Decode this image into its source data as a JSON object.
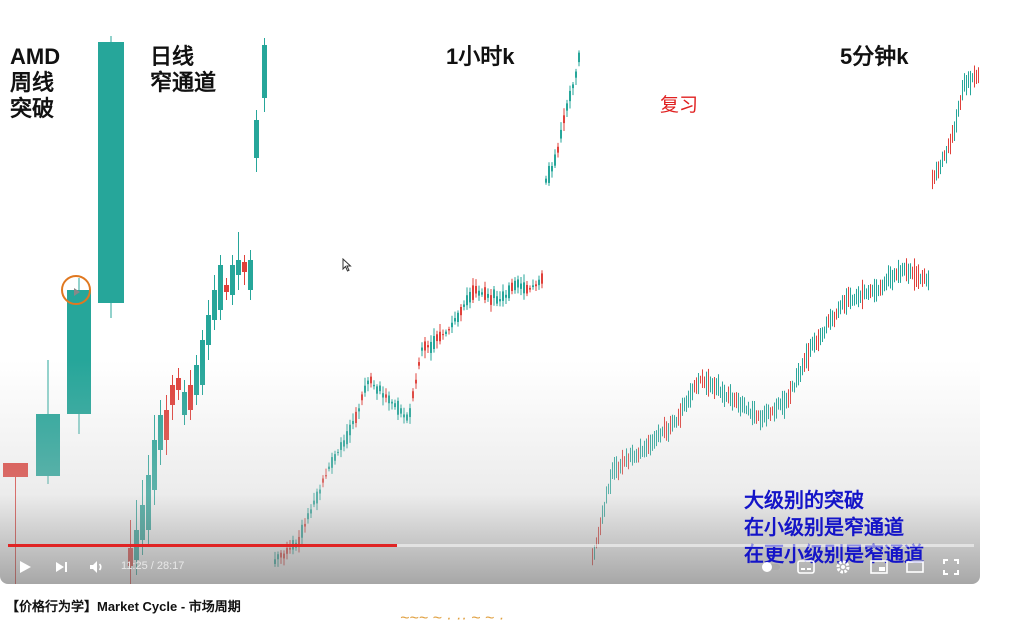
{
  "labels": {
    "amd": "AMD\n周线\n突破",
    "daily": "日线\n窄通道",
    "one_hour": "1小时k",
    "five_min": "5分钟k",
    "review": "复习",
    "summary": "大级别的突破\n在小级别是窄通道\n在更小级别是窄通道"
  },
  "player": {
    "time_current": "11:25",
    "time_separator": " / ",
    "time_total": "28:17",
    "progress_fraction": 0.403
  },
  "video": {
    "title": "【价格行为学】Market Cycle - 市场周期",
    "subtitle_fragment": "~~~ ~ · ·· ~ ~ ·"
  },
  "colors": {
    "bull": "#26a69a",
    "bear": "#e0403a",
    "progress": "#e02424",
    "summary_text": "#1414c8",
    "review_text": "#e02020"
  },
  "icons": {
    "play": "play-icon",
    "next": "next-icon",
    "volume": "volume-icon",
    "subtitles": "subtitles-icon",
    "settings": "gear-icon",
    "miniplayer": "miniplayer-icon",
    "theater": "theater-icon",
    "fullscreen": "fullscreen-icon"
  }
}
